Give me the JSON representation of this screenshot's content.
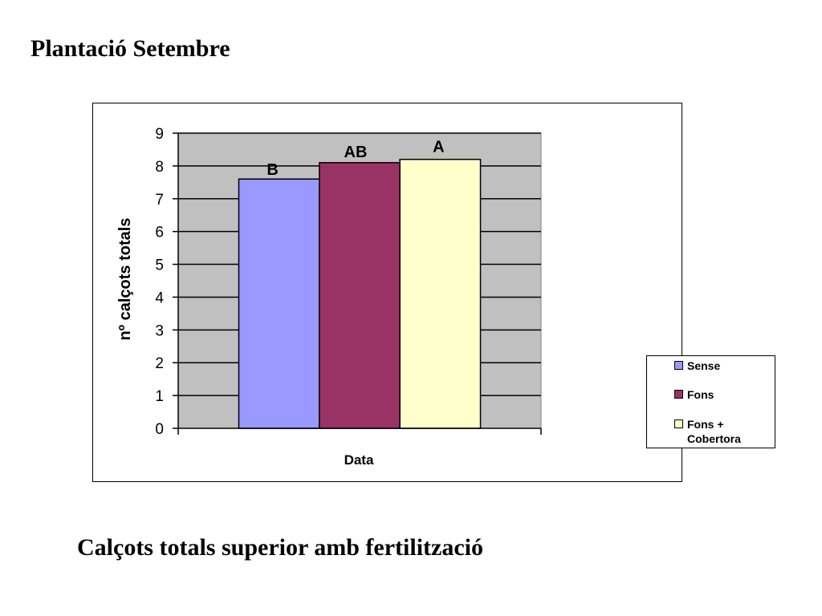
{
  "slide": {
    "title": "Plantació Setembre",
    "caption": "Calçots totals superior amb fertilització"
  },
  "chart_data": {
    "type": "bar",
    "categories": [
      ""
    ],
    "series": [
      {
        "name": "Sense",
        "values": [
          7.6
        ],
        "color": "#9999ff",
        "label": "B"
      },
      {
        "name": "Fons",
        "values": [
          8.1
        ],
        "color": "#993366",
        "label": "AB"
      },
      {
        "name": "Fons + Cobertora",
        "values": [
          8.2
        ],
        "color": "#ffffcc",
        "label": "A"
      }
    ],
    "xlabel": "Data",
    "ylabel": "nº calçots totals",
    "ylim": [
      0,
      9
    ],
    "yticks": [
      0,
      1,
      2,
      3,
      4,
      5,
      6,
      7,
      8,
      9
    ],
    "grid": true,
    "plot_background": "#c0c0c0",
    "legend_position": "right"
  }
}
